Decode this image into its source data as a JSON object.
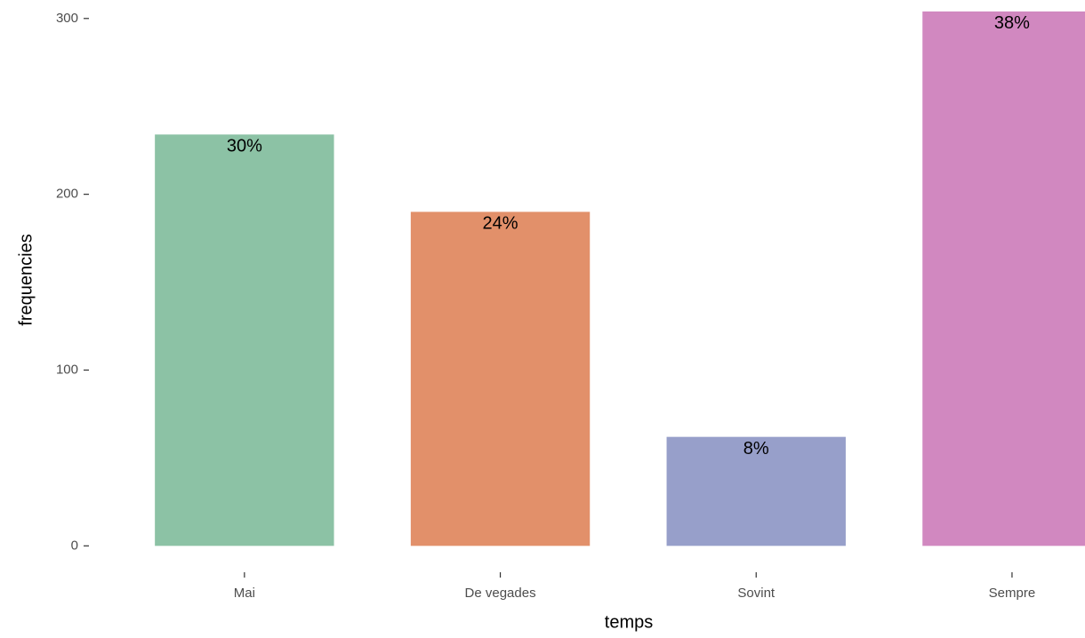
{
  "chart_data": {
    "type": "bar",
    "x_label": "temps",
    "y_label": "frequencies",
    "categories": [
      "Mai",
      "De vegades",
      "Sovint",
      "Sempre"
    ],
    "values": [
      234,
      190,
      62,
      304
    ],
    "bar_labels": [
      "30%",
      "24%",
      "8%",
      "38%"
    ],
    "colors": [
      "#8cc2a5",
      "#e2906a",
      "#979fca",
      "#d188c0"
    ],
    "ylim": [
      -15,
      310
    ],
    "yticks": [
      0,
      100,
      200,
      300
    ],
    "grid": false
  }
}
